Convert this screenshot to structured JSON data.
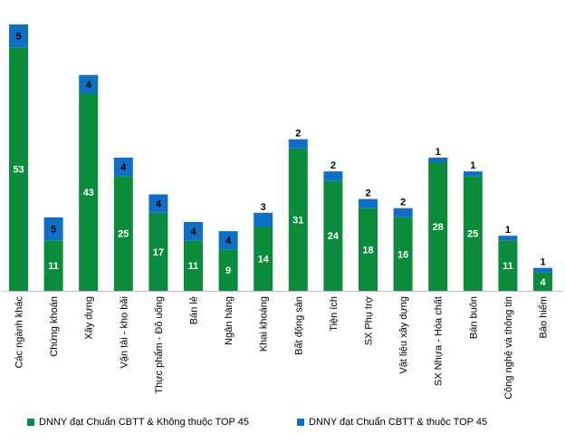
{
  "colors": {
    "green": "#0a8c3c",
    "blue": "#0f6fc4",
    "axis": "#bfbfbf"
  },
  "legend": [
    {
      "name": "DNNY đạt Chuẩn CBTT & Không thuộc TOP 45",
      "color": "#0a8c3c"
    },
    {
      "name": "DNNY đạt Chuẩn CBTT & thuộc TOP 45",
      "color": "#0f6fc4"
    }
  ],
  "chart_data": {
    "type": "bar",
    "stacked": true,
    "title": "",
    "xlabel": "",
    "ylabel": "",
    "ylim": [
      0,
      58
    ],
    "grid": false,
    "legend_position": "bottom",
    "categories": [
      "Các ngành khác",
      "Chứng khoán",
      "Xây dựng",
      "Vận tải - kho bãi",
      "Thực phẩm - Đồ uống",
      "Bán lẻ",
      "Ngân hàng",
      "Khai khoáng",
      "Bất động sản",
      "Tiện ích",
      "SX Phụ trợ",
      "Vật liệu xây dựng",
      "SX Nhựa - Hóa chất",
      "Bán buôn",
      "Công nghệ và thông tin",
      "Bảo hiểm"
    ],
    "series": [
      {
        "name": "DNNY đạt Chuẩn CBTT & Không thuộc TOP 45",
        "color": "#0a8c3c",
        "values": [
          53,
          11,
          43,
          25,
          17,
          11,
          9,
          14,
          31,
          24,
          18,
          16,
          28,
          25,
          11,
          4
        ]
      },
      {
        "name": "DNNY đạt Chuẩn CBTT & thuộc TOP 45",
        "color": "#0f6fc4",
        "values": [
          5,
          5,
          4,
          4,
          4,
          4,
          4,
          3,
          2,
          2,
          2,
          2,
          1,
          1,
          1,
          1
        ]
      }
    ]
  }
}
